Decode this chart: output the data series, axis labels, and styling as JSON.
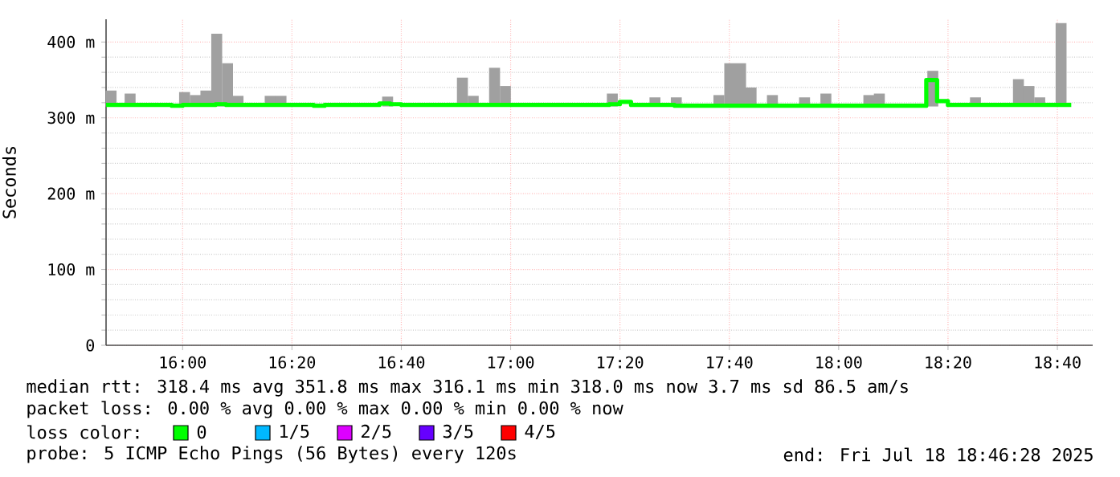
{
  "chart_data": {
    "type": "bar",
    "ylabel": "Seconds",
    "xlim": [
      15.7667,
      18.7744
    ],
    "ylim": [
      0,
      430
    ],
    "xticks": [
      {
        "value": 16,
        "label": "16:00"
      },
      {
        "value": 16.3333,
        "label": "16:20"
      },
      {
        "value": 16.6667,
        "label": "16:40"
      },
      {
        "value": 17,
        "label": "17:00"
      },
      {
        "value": 17.3333,
        "label": "17:20"
      },
      {
        "value": 17.6667,
        "label": "17:40"
      },
      {
        "value": 18,
        "label": "18:00"
      },
      {
        "value": 18.3333,
        "label": "18:20"
      },
      {
        "value": 18.6667,
        "label": "18:40"
      }
    ],
    "yticks": [
      0,
      {
        "value": 100,
        "label": "100 m"
      },
      {
        "value": 200,
        "label": "200 m"
      },
      {
        "value": 300,
        "label": "300 m"
      },
      {
        "value": 400,
        "label": "400 m"
      }
    ],
    "grid": true,
    "legend": "bottom",
    "legend_title": "loss color:",
    "series": [
      {
        "color": "#a0a0a0",
        "x": [
          15.782,
          15.84,
          16.006,
          16.039,
          16.071,
          16.104,
          16.137,
          16.169,
          16.267,
          16.3,
          16.625,
          16.853,
          16.886,
          16.951,
          16.984,
          17.31,
          17.44,
          17.505,
          17.635,
          17.668,
          17.701,
          17.733,
          17.798,
          17.896,
          17.961,
          18.092,
          18.124,
          18.287,
          18.32,
          18.417,
          18.548,
          18.58,
          18.613,
          18.678
        ],
        "base": [
          315,
          315,
          315,
          315,
          315,
          315,
          315,
          315,
          315,
          315,
          315,
          315,
          315,
          315,
          315,
          315,
          315,
          315,
          315,
          315,
          315,
          315,
          315,
          315,
          315,
          315,
          315,
          315,
          null,
          315,
          315,
          315,
          315,
          315
        ],
        "values": [
          21,
          17,
          19,
          15,
          21,
          96,
          57,
          14,
          14,
          14,
          13,
          38,
          14,
          51,
          27,
          17,
          12,
          12,
          15,
          57,
          57,
          25,
          15,
          12,
          17,
          15,
          17,
          47,
          null,
          12,
          36,
          27,
          12,
          110
        ]
      },
      {
        "type": "step",
        "name": "0",
        "color": "#00ff00",
        "x": [
          15.7667,
          15.967,
          16.0,
          16.1,
          16.133,
          16.4,
          16.433,
          16.6,
          16.633,
          16.667,
          17.3,
          17.333,
          17.367,
          17.5,
          18.267,
          18.3,
          18.333,
          18.709
        ],
        "values": [
          317,
          316,
          317,
          318,
          317,
          316,
          317,
          319,
          318,
          317,
          318,
          321,
          317,
          316,
          350,
          322,
          317,
          317
        ]
      },
      {
        "type": "step",
        "name": "1/5",
        "color": "#00b8ff"
      },
      {
        "type": "step",
        "name": "2/5",
        "color": "#dd00ff"
      },
      {
        "type": "step",
        "name": "3/5",
        "color": "#6600ff"
      },
      {
        "type": "step",
        "name": "4/5",
        "color": "#ff0000"
      }
    ],
    "annotations": [
      "median rtt:  318.4 ms avg  351.8 ms max  316.1 ms min  318.0 ms now  3.7 ms sd  86.5   am/s",
      "packet loss: 0.00 % avg  0.00 % max  0.00 % min  0.00 % now",
      "probe:       5 ICMP Echo Pings (56 Bytes) every 120s",
      "end: Fri Jul 18 18:46:28 2025"
    ]
  }
}
